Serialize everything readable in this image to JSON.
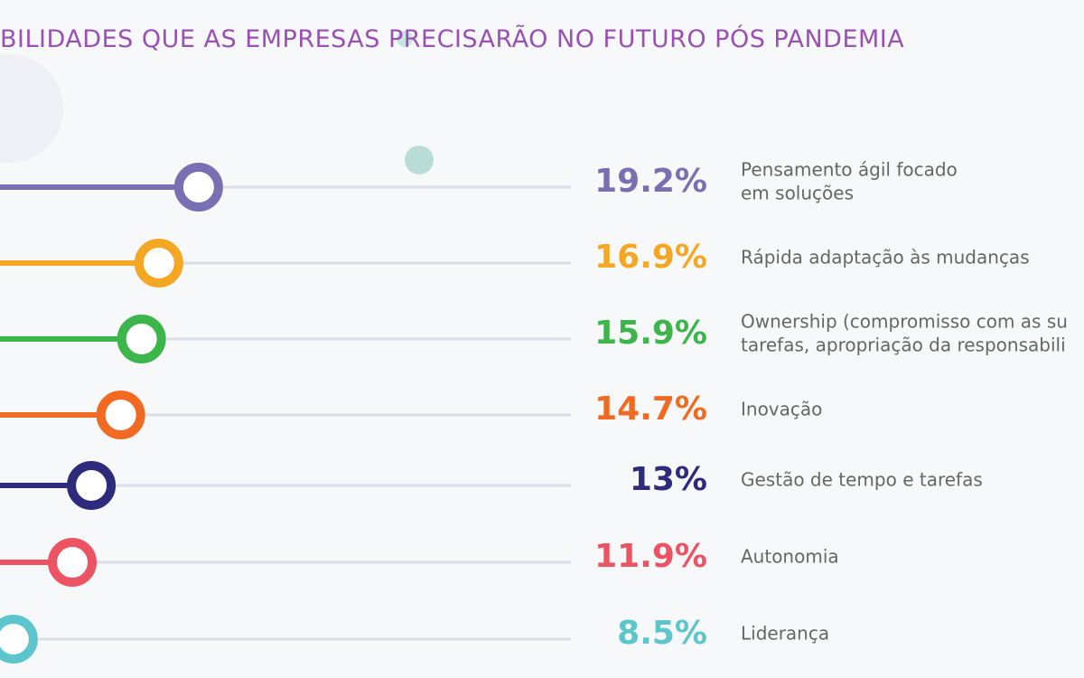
{
  "chart_data": {
    "type": "lollipop",
    "title": "BILIDADES QUE AS EMPRESAS PRECISARÃO NO FUTURO PÓS PANDEMIA",
    "categories": [
      [
        "Pensamento ágil focado",
        "em soluções"
      ],
      [
        "Rápida adaptação às mudanças"
      ],
      [
        "Ownership (compromisso com as su",
        "tarefas, apropriação da responsabili"
      ],
      [
        "Inovação"
      ],
      [
        "Gestão de tempo e tarefas"
      ],
      [
        "Autonomia"
      ],
      [
        "Liderança"
      ]
    ],
    "values": [
      19.2,
      16.9,
      15.9,
      14.7,
      13,
      11.9,
      8.5
    ],
    "value_labels": [
      "19.2%",
      "16.9%",
      "15.9%",
      "14.7%",
      "13%",
      "11.9%",
      "8.5%"
    ],
    "colors": [
      "#7b6fb3",
      "#f5a623",
      "#3cb54a",
      "#f06a22",
      "#2e2a7c",
      "#ec5464",
      "#5cc6cc"
    ]
  }
}
